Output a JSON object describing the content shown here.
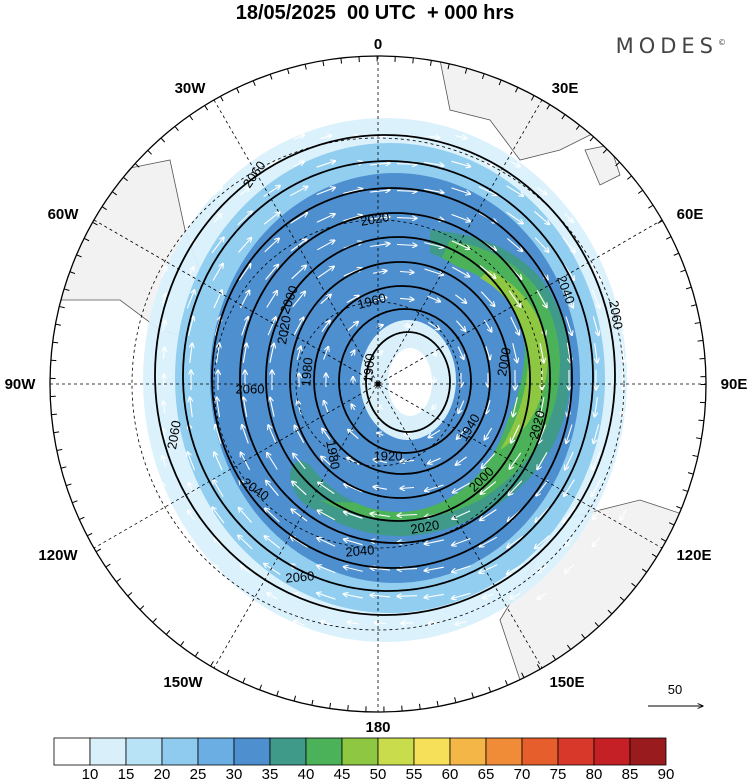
{
  "header": {
    "title": "18/05/2025  00 UTC  + 000 hrs",
    "brand": "MODES",
    "brand_mark": "©"
  },
  "map": {
    "projection": "polar stereographic (south pole)",
    "field": "geopotential height contours with wind speed shading and wind vectors",
    "longitude_labels": [
      "0",
      "30E",
      "60E",
      "90E",
      "120E",
      "150E",
      "180",
      "150W",
      "120W",
      "90W",
      "60W",
      "30W"
    ],
    "contour_labels": [
      "2060",
      "2060",
      "2060",
      "2060",
      "2060",
      "2040",
      "2040",
      "2040",
      "2020",
      "2020",
      "2020",
      "2020",
      "2000",
      "2000",
      "2000",
      "1980",
      "1980",
      "1960",
      "1940",
      "1940",
      "1920",
      "1900"
    ],
    "vector_reference": {
      "value": "50"
    }
  },
  "colorbar": {
    "labels": [
      "10",
      "15",
      "20",
      "25",
      "30",
      "35",
      "40",
      "45",
      "50",
      "55",
      "60",
      "65",
      "70",
      "75",
      "80",
      "85",
      "90"
    ],
    "colors": [
      "#ffffff",
      "#d9f0fb",
      "#b8e2f6",
      "#8ecbef",
      "#6aaee3",
      "#4d8fcf",
      "#3f9a8a",
      "#4cb25a",
      "#8ec843",
      "#c9dc4c",
      "#f6e05a",
      "#f5b648",
      "#f08c38",
      "#e55e2c",
      "#d8382a",
      "#c42026",
      "#9a1b1e"
    ]
  }
}
